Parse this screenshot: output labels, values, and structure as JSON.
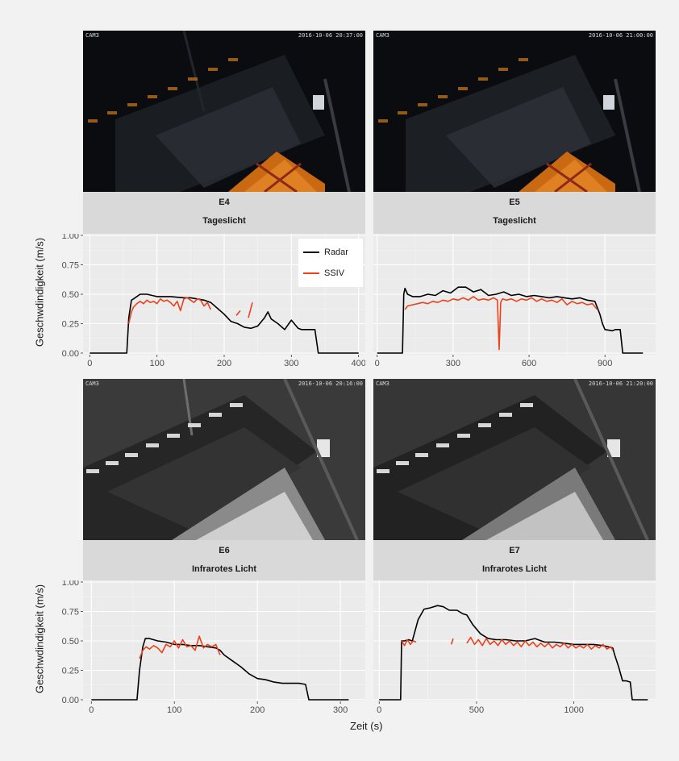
{
  "figure": {
    "ylabel": "Geschwdindigkeit (m/s)",
    "xlabel": "Zeit (s)",
    "legend": [
      {
        "label": "Radar",
        "color": "#000000"
      },
      {
        "label": "SSIV",
        "color": "#e8431c"
      }
    ]
  },
  "cameras": [
    {
      "cam": "CAM3",
      "timestamp": "2016-10-06 20:37:00",
      "mode": "day"
    },
    {
      "cam": "CAM3",
      "timestamp": "2016-10-06 21:00:00",
      "mode": "day"
    },
    {
      "cam": "CAM3",
      "timestamp": "2016-10-06 20:16:00",
      "mode": "ir"
    },
    {
      "cam": "CAM3",
      "timestamp": "2016-10-06 21:20:00",
      "mode": "ir"
    }
  ],
  "chart_data": [
    {
      "type": "line",
      "experiment": "E4",
      "lighting": "Tageslicht",
      "xlim": [
        -10,
        410
      ],
      "ylim": [
        0,
        1
      ],
      "xticks": [
        0,
        100,
        200,
        300,
        400
      ],
      "yticks": [
        "0.00",
        "0.25",
        "0.50",
        "0.75",
        "1.00"
      ],
      "series": [
        {
          "name": "Radar",
          "color": "#000000",
          "x": [
            0,
            55,
            58,
            62,
            65,
            75,
            85,
            100,
            120,
            140,
            150,
            160,
            170,
            180,
            190,
            200,
            210,
            220,
            230,
            240,
            250,
            260,
            265,
            270,
            280,
            290,
            300,
            310,
            315,
            325,
            335,
            340,
            350,
            360,
            400
          ],
          "y": [
            0,
            0,
            0.3,
            0.45,
            0.46,
            0.5,
            0.5,
            0.48,
            0.48,
            0.47,
            0.47,
            0.46,
            0.45,
            0.43,
            0.38,
            0.33,
            0.27,
            0.25,
            0.22,
            0.21,
            0.23,
            0.3,
            0.35,
            0.29,
            0.25,
            0.2,
            0.28,
            0.21,
            0.2,
            0.2,
            0.2,
            0,
            0,
            0,
            0
          ]
        },
        {
          "name": "SSIV",
          "color": "#e8431c",
          "x": [
            58,
            62,
            65,
            70,
            75,
            80,
            85,
            90,
            95,
            100,
            105,
            110,
            115,
            120,
            125,
            130,
            135,
            140,
            145,
            150,
            155,
            160,
            165,
            170,
            175,
            180,
            null,
            218,
            224,
            null,
            236,
            242
          ],
          "y": [
            0.25,
            0.35,
            0.39,
            0.42,
            0.44,
            0.42,
            0.45,
            0.43,
            0.44,
            0.42,
            0.46,
            0.44,
            0.45,
            0.43,
            0.4,
            0.44,
            0.36,
            0.46,
            0.47,
            0.45,
            0.43,
            0.46,
            0.45,
            0.4,
            0.43,
            0.37,
            null,
            0.32,
            0.36,
            null,
            0.3,
            0.43
          ]
        }
      ]
    },
    {
      "type": "line",
      "experiment": "E5",
      "lighting": "Tageslicht",
      "xlim": [
        -15,
        1100
      ],
      "ylim": [
        0,
        1
      ],
      "xticks": [
        0,
        300,
        600,
        900
      ],
      "yticks": [
        "0.00",
        "0.25",
        "0.50",
        "0.75",
        "1.00"
      ],
      "series": [
        {
          "name": "Radar",
          "color": "#000000",
          "x": [
            0,
            60,
            100,
            105,
            110,
            120,
            140,
            170,
            200,
            230,
            260,
            290,
            320,
            350,
            380,
            410,
            440,
            470,
            500,
            530,
            560,
            590,
            620,
            650,
            680,
            710,
            740,
            770,
            800,
            830,
            860,
            880,
            890,
            900,
            930,
            940,
            960,
            970,
            990,
            1000,
            1050
          ],
          "y": [
            0,
            0,
            0,
            0.5,
            0.55,
            0.5,
            0.48,
            0.48,
            0.5,
            0.49,
            0.53,
            0.51,
            0.56,
            0.56,
            0.52,
            0.54,
            0.49,
            0.5,
            0.52,
            0.49,
            0.5,
            0.48,
            0.49,
            0.48,
            0.47,
            0.48,
            0.47,
            0.46,
            0.47,
            0.45,
            0.44,
            0.33,
            0.25,
            0.2,
            0.19,
            0.2,
            0.2,
            0,
            0,
            0,
            0
          ]
        },
        {
          "name": "SSIV",
          "color": "#e8431c",
          "x": [
            110,
            120,
            140,
            160,
            180,
            200,
            220,
            240,
            260,
            280,
            300,
            320,
            340,
            360,
            380,
            400,
            420,
            440,
            460,
            475,
            482,
            488,
            495,
            510,
            530,
            550,
            570,
            590,
            610,
            630,
            650,
            670,
            690,
            710,
            730,
            750,
            770,
            790,
            810,
            830,
            850,
            870
          ],
          "y": [
            0.37,
            0.4,
            0.41,
            0.42,
            0.43,
            0.42,
            0.44,
            0.43,
            0.45,
            0.44,
            0.46,
            0.45,
            0.47,
            0.45,
            0.48,
            0.45,
            0.46,
            0.45,
            0.47,
            0.45,
            0.03,
            0.43,
            0.46,
            0.45,
            0.46,
            0.44,
            0.46,
            0.45,
            0.47,
            0.44,
            0.46,
            0.44,
            0.45,
            0.43,
            0.46,
            0.41,
            0.44,
            0.42,
            0.43,
            0.41,
            0.42,
            0.37
          ]
        }
      ]
    },
    {
      "type": "line",
      "experiment": "E6",
      "lighting": "Infrarotes Licht",
      "xlim": [
        -10,
        330
      ],
      "ylim": [
        0,
        1
      ],
      "xticks": [
        0,
        100,
        200,
        300
      ],
      "yticks": [
        "0.00",
        "0.25",
        "0.50",
        "0.75",
        "1.00"
      ],
      "series": [
        {
          "name": "Radar",
          "color": "#000000",
          "x": [
            0,
            55,
            58,
            62,
            65,
            70,
            80,
            90,
            100,
            110,
            120,
            130,
            140,
            150,
            155,
            160,
            170,
            180,
            190,
            200,
            210,
            220,
            230,
            240,
            250,
            258,
            262,
            270,
            310
          ],
          "y": [
            0,
            0,
            0.25,
            0.45,
            0.52,
            0.52,
            0.5,
            0.49,
            0.47,
            0.47,
            0.46,
            0.46,
            0.45,
            0.44,
            0.42,
            0.38,
            0.33,
            0.28,
            0.22,
            0.18,
            0.17,
            0.15,
            0.14,
            0.14,
            0.14,
            0.13,
            0,
            0,
            0
          ]
        },
        {
          "name": "SSIV",
          "color": "#e8431c",
          "x": [
            58,
            62,
            66,
            70,
            75,
            80,
            85,
            90,
            95,
            100,
            105,
            110,
            115,
            120,
            125,
            130,
            135,
            140,
            145,
            150,
            155
          ],
          "y": [
            0.35,
            0.42,
            0.45,
            0.43,
            0.46,
            0.44,
            0.4,
            0.47,
            0.45,
            0.5,
            0.44,
            0.51,
            0.45,
            0.46,
            0.42,
            0.54,
            0.44,
            0.47,
            0.45,
            0.47,
            0.38
          ]
        }
      ]
    },
    {
      "type": "line",
      "experiment": "E7",
      "lighting": "Infrarotes Licht",
      "xlim": [
        -30,
        1420
      ],
      "ylim": [
        0,
        1
      ],
      "xticks": [
        0,
        500,
        1000
      ],
      "yticks": [
        "0.00",
        "0.25",
        "0.50",
        "0.75",
        "1.00"
      ],
      "series": [
        {
          "name": "Radar",
          "color": "#000000",
          "x": [
            0,
            90,
            110,
            115,
            130,
            150,
            170,
            200,
            230,
            260,
            300,
            330,
            360,
            400,
            430,
            450,
            480,
            520,
            560,
            600,
            650,
            700,
            750,
            800,
            850,
            900,
            950,
            1000,
            1050,
            1100,
            1150,
            1200,
            1210,
            1230,
            1250,
            1270,
            1290,
            1300,
            1320,
            1380
          ],
          "y": [
            0,
            0,
            0,
            0.5,
            0.5,
            0.51,
            0.5,
            0.68,
            0.77,
            0.78,
            0.8,
            0.79,
            0.76,
            0.76,
            0.73,
            0.72,
            0.64,
            0.56,
            0.52,
            0.51,
            0.51,
            0.5,
            0.5,
            0.52,
            0.49,
            0.49,
            0.48,
            0.47,
            0.47,
            0.47,
            0.46,
            0.44,
            0.38,
            0.28,
            0.16,
            0.16,
            0.15,
            0,
            0,
            0
          ]
        },
        {
          "name": "SSIV",
          "color": "#e8431c",
          "x": [
            115,
            130,
            145,
            160,
            175,
            190,
            null,
            370,
            380,
            null,
            450,
            470,
            490,
            510,
            530,
            550,
            570,
            590,
            610,
            630,
            650,
            670,
            690,
            710,
            730,
            750,
            770,
            790,
            810,
            830,
            850,
            870,
            890,
            910,
            930,
            950,
            970,
            990,
            1010,
            1030,
            1050,
            1070,
            1090,
            1110,
            1130,
            1150,
            1170,
            1190,
            1200
          ],
          "y": [
            0.5,
            0.46,
            0.51,
            0.47,
            0.5,
            0.49,
            null,
            0.47,
            0.52,
            null,
            0.48,
            0.53,
            0.47,
            0.51,
            0.46,
            0.52,
            0.47,
            0.5,
            0.46,
            0.51,
            0.47,
            0.5,
            0.46,
            0.49,
            0.45,
            0.5,
            0.46,
            0.49,
            0.45,
            0.48,
            0.45,
            0.48,
            0.44,
            0.47,
            0.45,
            0.48,
            0.44,
            0.47,
            0.44,
            0.46,
            0.44,
            0.47,
            0.43,
            0.46,
            0.44,
            0.47,
            0.43,
            0.45,
            0.42
          ]
        }
      ]
    }
  ]
}
